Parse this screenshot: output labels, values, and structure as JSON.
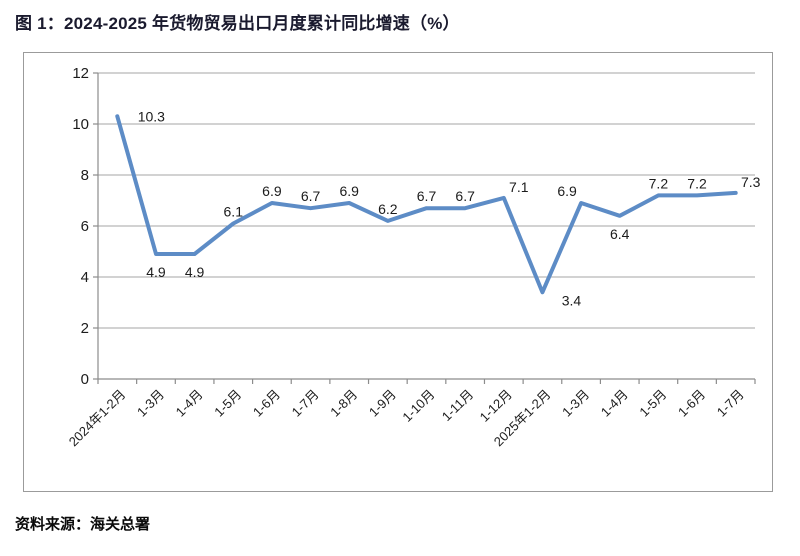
{
  "page": {
    "title": "图 1：2024-2025 年货物贸易出口月度累计同比增速（%）",
    "source": "资料来源：海关总署"
  },
  "colors": {
    "line": "#5D8CC6",
    "grid": "#A6A6A6",
    "axis": "#8C8C8C",
    "text": "#1c1c1c",
    "frame_border": "#9B9B9B",
    "title_text": "#1A1A2E"
  },
  "chart_data": {
    "type": "line",
    "title": "图 1：2024-2025 年货物贸易出口月度累计同比增速（%）",
    "xlabel": "",
    "ylabel": "",
    "categories": [
      "2024年1-2月",
      "1-3月",
      "1-4月",
      "1-5月",
      "1-6月",
      "1-7月",
      "1-8月",
      "1-9月",
      "1-10月",
      "1-11月",
      "1-12月",
      "2025年1-2月",
      "1-3月",
      "1-4月",
      "1-5月",
      "1-6月",
      "1-7月"
    ],
    "values": [
      10.3,
      4.9,
      4.9,
      6.1,
      6.9,
      6.7,
      6.9,
      6.2,
      6.7,
      6.7,
      7.1,
      3.4,
      6.9,
      6.4,
      7.2,
      7.2,
      7.3
    ],
    "data_labels_shown": true,
    "label_placements": [
      "right",
      "below",
      "below",
      "above",
      "above",
      "above",
      "above",
      "above",
      "above",
      "above",
      "above-right",
      "below-right",
      "above-left",
      "below",
      "above",
      "above",
      "above-right"
    ],
    "ylim": [
      0,
      12
    ],
    "yticks": [
      0,
      2,
      4,
      6,
      8,
      10,
      12
    ],
    "grid": true,
    "legend_position": "none",
    "line_color": "#5D8CC6",
    "x_label_rotation_deg": 45,
    "source": "资料来源：海关总署"
  }
}
